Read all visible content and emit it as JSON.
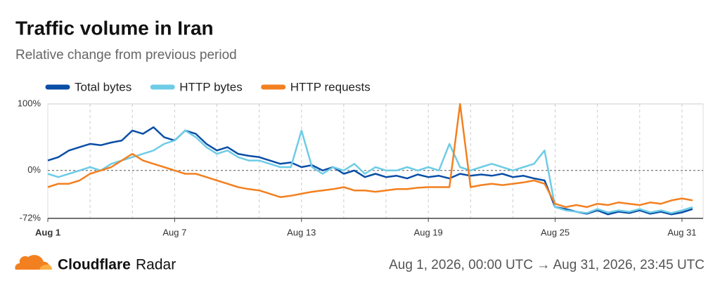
{
  "chart_data": {
    "type": "line",
    "title": "Traffic volume in Iran",
    "subtitle": "Relative change from previous period",
    "x": [
      1,
      1.5,
      2,
      2.5,
      3,
      3.5,
      4,
      4.5,
      5,
      5.5,
      6,
      6.5,
      7,
      7.5,
      8,
      8.5,
      9,
      9.5,
      10,
      10.5,
      11,
      11.5,
      12,
      12.5,
      13,
      13.5,
      14,
      14.5,
      15,
      15.5,
      16,
      16.5,
      17,
      17.5,
      18,
      18.5,
      19,
      19.5,
      20,
      20.5,
      21,
      21.5,
      22,
      22.5,
      23,
      23.5,
      24,
      24.5,
      25,
      25.5,
      26,
      26.5,
      27,
      27.5,
      28,
      28.5,
      29,
      29.5,
      30,
      30.5,
      31,
      31.5
    ],
    "series": [
      {
        "name": "Total bytes",
        "color": "#0a4ea6",
        "values": [
          15,
          20,
          30,
          35,
          40,
          38,
          42,
          45,
          60,
          55,
          65,
          50,
          45,
          60,
          55,
          40,
          30,
          35,
          25,
          22,
          20,
          15,
          10,
          12,
          5,
          8,
          0,
          5,
          -5,
          0,
          -10,
          -5,
          -10,
          -8,
          -12,
          -6,
          -10,
          -8,
          -12,
          -5,
          -8,
          -6,
          -8,
          -5,
          -10,
          -8,
          -12,
          -15,
          -55,
          -58,
          -62,
          -65,
          -60,
          -66,
          -62,
          -64,
          -60,
          -65,
          -62,
          -66,
          -63,
          -58
        ]
      },
      {
        "name": "HTTP bytes",
        "color": "#6ecce6",
        "values": [
          -5,
          -10,
          -5,
          0,
          5,
          0,
          10,
          15,
          20,
          25,
          30,
          40,
          45,
          60,
          50,
          35,
          25,
          30,
          20,
          15,
          15,
          10,
          5,
          5,
          60,
          5,
          -5,
          5,
          0,
          10,
          -5,
          5,
          0,
          0,
          5,
          0,
          5,
          0,
          40,
          5,
          0,
          5,
          10,
          5,
          0,
          5,
          10,
          30,
          -55,
          -60,
          -62,
          -64,
          -58,
          -63,
          -60,
          -62,
          -58,
          -63,
          -60,
          -64,
          -60,
          -55
        ]
      },
      {
        "name": "HTTP requests",
        "color": "#f38020",
        "values": [
          -25,
          -20,
          -20,
          -15,
          -5,
          0,
          5,
          15,
          25,
          15,
          10,
          5,
          0,
          -5,
          -5,
          -10,
          -15,
          -20,
          -25,
          -28,
          -30,
          -35,
          -40,
          -38,
          -35,
          -32,
          -30,
          -28,
          -25,
          -30,
          -30,
          -32,
          -30,
          -28,
          -28,
          -26,
          -25,
          -25,
          -25,
          100,
          -25,
          -22,
          -20,
          -22,
          -20,
          -18,
          -15,
          -20,
          -50,
          -55,
          -52,
          -55,
          -50,
          -52,
          -48,
          -50,
          -52,
          -48,
          -50,
          -45,
          -42,
          -45
        ]
      }
    ],
    "xlim": [
      1,
      32
    ],
    "xticks": [
      {
        "value": 1,
        "label": "Aug 1"
      },
      {
        "value": 7,
        "label": "Aug 7"
      },
      {
        "value": 13,
        "label": "Aug 13"
      },
      {
        "value": 19,
        "label": "Aug 19"
      },
      {
        "value": 25,
        "label": "Aug 25"
      },
      {
        "value": 31,
        "label": "Aug 31"
      }
    ],
    "xgrid": [
      3,
      5,
      7,
      9,
      11,
      13,
      15,
      17,
      19,
      21,
      23,
      25,
      27,
      29,
      31
    ],
    "ylim": [
      -72,
      100
    ],
    "yticks": [
      {
        "value": 100,
        "label": "100%"
      },
      {
        "value": 0,
        "label": "0%"
      },
      {
        "value": -72,
        "label": "-72%"
      }
    ],
    "brand": {
      "name_bold": "Cloudflare",
      "name": "Radar"
    },
    "date_range": "Aug 1, 2026, 00:00 UTC → Aug 31, 2026, 23:45 UTC"
  }
}
